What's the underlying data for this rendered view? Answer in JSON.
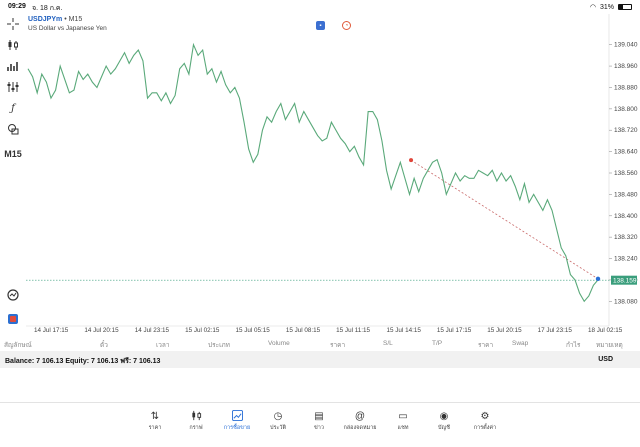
{
  "status_bar": {
    "time": "09:29",
    "date": "จ. 18 ก.ค.",
    "battery": "31%"
  },
  "chart": {
    "symbol": "USDJPYm",
    "bullet": "•",
    "timeframe": "M15",
    "description": "US Dollar vs Japanese Yen",
    "timeframe_badge": "M15",
    "current_price": "138.159",
    "line_color": "#5aa97a",
    "price_label_color": "#3a9e7c"
  },
  "chart_data": {
    "type": "line",
    "y_ticks": [
      "139.040",
      "138.960",
      "138.880",
      "138.800",
      "138.720",
      "138.640",
      "138.560",
      "138.480",
      "138.400",
      "138.320",
      "138.240",
      "138.160",
      "138.080"
    ],
    "ylim": [
      138.04,
      139.08
    ],
    "x_ticks": [
      "14 Jul 17:15",
      "14 Jul 20:15",
      "14 Jul 23:15",
      "15 Jul 02:15",
      "15 Jul 05:15",
      "15 Jul 08:15",
      "15 Jul 11:15",
      "15 Jul 14:15",
      "15 Jul 17:15",
      "15 Jul 20:15",
      "17 Jul 23:15",
      "18 Jul 02:15"
    ],
    "values": [
      138.95,
      138.92,
      138.86,
      138.93,
      138.9,
      138.84,
      138.87,
      138.96,
      138.91,
      138.86,
      138.87,
      138.94,
      138.91,
      138.93,
      138.9,
      138.88,
      138.92,
      138.96,
      138.93,
      138.95,
      138.98,
      139.01,
      138.97,
      139.0,
      139.02,
      138.98,
      138.84,
      138.86,
      138.86,
      138.83,
      138.86,
      138.82,
      138.85,
      138.95,
      138.97,
      138.93,
      139.04,
      139.0,
      139.02,
      138.93,
      138.95,
      138.9,
      138.94,
      138.89,
      138.86,
      138.88,
      138.84,
      138.75,
      138.65,
      138.6,
      138.63,
      138.72,
      138.77,
      138.75,
      138.79,
      138.82,
      138.76,
      138.79,
      138.82,
      138.75,
      138.79,
      138.76,
      138.73,
      138.7,
      138.68,
      138.69,
      138.75,
      138.72,
      138.69,
      138.67,
      138.64,
      138.66,
      138.62,
      138.59,
      138.79,
      138.79,
      138.76,
      138.68,
      138.57,
      138.5,
      138.55,
      138.6,
      138.54,
      138.48,
      138.54,
      138.49,
      138.54,
      138.57,
      138.6,
      138.61,
      138.56,
      138.48,
      138.52,
      138.56,
      138.53,
      138.55,
      138.54,
      138.54,
      138.57,
      138.56,
      138.55,
      138.57,
      138.53,
      138.56,
      138.53,
      138.55,
      138.51,
      138.46,
      138.52,
      138.45,
      138.48,
      138.45,
      138.42,
      138.46,
      138.42,
      138.35,
      138.28,
      138.25,
      138.18,
      138.16,
      138.11,
      138.08,
      138.1,
      138.14,
      138.16
    ],
    "trendline": [
      [
        0.672,
        138.608
      ],
      [
        1.0,
        138.164
      ]
    ]
  },
  "positions_header": [
    "สัญลักษณ์",
    "ตั๋ว",
    "เวลา",
    "ประเภท",
    "Volume",
    "ราคา",
    "S/L",
    "T/P",
    "ราคา",
    "Swap",
    "กำไร",
    "หมายเหตุ"
  ],
  "balance": {
    "text": "Balance: 7 106.13 Equity: 7 106.13 ฟรี: 7 106.13",
    "currency": "USD"
  },
  "nav": [
    {
      "label": "ราคา",
      "icon": "quotes-icon"
    },
    {
      "label": "กราฟ",
      "icon": "chart-icon"
    },
    {
      "label": "การซื้อขาย",
      "icon": "trade-icon"
    },
    {
      "label": "ประวัติ",
      "icon": "history-icon"
    },
    {
      "label": "ข่าว",
      "icon": "news-icon"
    },
    {
      "label": "กล่องจดหมาย",
      "icon": "mail-icon"
    },
    {
      "label": "แชท",
      "icon": "chat-icon"
    },
    {
      "label": "บัญชี",
      "icon": "account-icon"
    },
    {
      "label": "การตั้งค่า",
      "icon": "settings-icon"
    }
  ]
}
